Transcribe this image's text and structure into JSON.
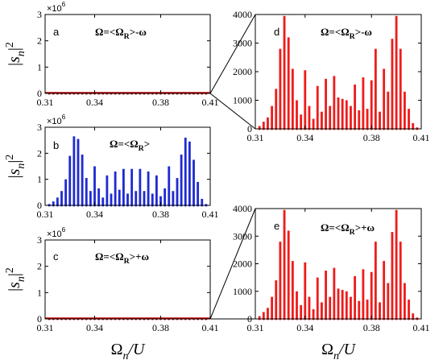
{
  "figure": {
    "ylabel": "|s_n|^2",
    "xlabel": "Ω_n/U"
  },
  "chart_data": [
    {
      "panel": "a",
      "type": "bar",
      "color": "#c00000",
      "flat": true,
      "label": "Ω=<Ω_R>-ω",
      "ylim": [
        0,
        3
      ],
      "yticks": [
        0,
        1,
        2,
        3
      ],
      "exponent": "×10^6",
      "xlim": [
        0.31,
        0.41
      ],
      "xticks": [
        "0.31",
        "0.34",
        "0.38",
        "0.41"
      ],
      "x": [
        0.3125,
        0.315,
        0.3175,
        0.32,
        0.3225,
        0.325,
        0.3275,
        0.33,
        0.3325,
        0.335,
        0.3375,
        0.34,
        0.3425,
        0.345,
        0.3475,
        0.35,
        0.3525,
        0.355,
        0.3575,
        0.36,
        0.3625,
        0.365,
        0.3675,
        0.37,
        0.3725,
        0.375,
        0.3775,
        0.38,
        0.3825,
        0.385,
        0.3875,
        0.39,
        0.3925,
        0.395,
        0.3975,
        0.4,
        0.4025,
        0.405,
        0.4075
      ],
      "values": [
        0,
        0,
        0,
        0,
        0,
        0,
        0,
        0,
        0,
        0,
        0,
        0,
        0,
        0,
        0,
        0,
        0,
        0,
        0,
        0,
        0,
        0,
        0,
        0,
        0,
        0,
        0,
        0,
        0,
        0,
        0,
        0,
        0,
        0,
        0,
        0,
        0,
        0,
        0
      ]
    },
    {
      "panel": "b",
      "type": "bar",
      "color": "#1f2bd0",
      "label": "Ω=<Ω_R>",
      "ylim": [
        0,
        3
      ],
      "yticks": [
        0,
        1,
        2,
        3
      ],
      "exponent": "×10^6",
      "xlim": [
        0.31,
        0.41
      ],
      "xticks": [
        "0.31",
        "0.34",
        "0.38",
        "0.41"
      ],
      "x": [
        0.3125,
        0.315,
        0.3175,
        0.32,
        0.3225,
        0.325,
        0.3275,
        0.33,
        0.3325,
        0.335,
        0.3375,
        0.34,
        0.3425,
        0.345,
        0.3475,
        0.35,
        0.3525,
        0.355,
        0.3575,
        0.36,
        0.3625,
        0.365,
        0.3675,
        0.37,
        0.3725,
        0.375,
        0.3775,
        0.38,
        0.3825,
        0.385,
        0.3875,
        0.39,
        0.3925,
        0.395,
        0.3975,
        0.4,
        0.4025,
        0.405,
        0.4075
      ],
      "values": [
        0.05,
        0.15,
        0.3,
        0.55,
        1.0,
        1.9,
        2.65,
        2.55,
        1.95,
        1.05,
        0.55,
        1.5,
        0.65,
        0.3,
        1.15,
        0.45,
        1.3,
        0.6,
        1.4,
        0.45,
        1.4,
        0.55,
        1.4,
        0.55,
        1.3,
        0.45,
        1.15,
        0.35,
        0.65,
        1.5,
        0.55,
        1.05,
        1.95,
        2.6,
        2.45,
        1.75,
        0.9,
        0.25,
        0.05
      ]
    },
    {
      "panel": "c",
      "type": "bar",
      "color": "#c00000",
      "flat": true,
      "label": "Ω=<Ω_R>+ω",
      "ylim": [
        0,
        3
      ],
      "yticks": [
        0,
        1,
        2,
        3
      ],
      "exponent": "×10^6",
      "xlim": [
        0.31,
        0.41
      ],
      "xticks": [
        "0.31",
        "0.34",
        "0.38",
        "0.41"
      ],
      "x": [
        0.3125,
        0.315,
        0.3175,
        0.32,
        0.3225,
        0.325,
        0.3275,
        0.33,
        0.3325,
        0.335,
        0.3375,
        0.34,
        0.3425,
        0.345,
        0.3475,
        0.35,
        0.3525,
        0.355,
        0.3575,
        0.36,
        0.3625,
        0.365,
        0.3675,
        0.37,
        0.3725,
        0.375,
        0.3775,
        0.38,
        0.3825,
        0.385,
        0.3875,
        0.39,
        0.3925,
        0.395,
        0.3975,
        0.4,
        0.4025,
        0.405,
        0.4075
      ],
      "values": [
        0,
        0,
        0,
        0,
        0,
        0,
        0,
        0,
        0,
        0,
        0,
        0,
        0,
        0,
        0,
        0,
        0,
        0,
        0,
        0,
        0,
        0,
        0,
        0,
        0,
        0,
        0,
        0,
        0,
        0,
        0,
        0,
        0,
        0,
        0,
        0,
        0,
        0,
        0
      ]
    },
    {
      "panel": "d",
      "type": "bar",
      "color": "#ee1c1c",
      "label": "Ω=<Ω_R>-ω",
      "ylim": [
        0,
        4000
      ],
      "yticks": [
        0,
        1000,
        2000,
        3000,
        4000
      ],
      "xlim": [
        0.31,
        0.41
      ],
      "xticks": [
        "0.31",
        "0.34",
        "0.38",
        "0.41"
      ],
      "x": [
        0.3125,
        0.315,
        0.3175,
        0.32,
        0.3225,
        0.325,
        0.3275,
        0.33,
        0.3325,
        0.335,
        0.3375,
        0.34,
        0.3425,
        0.345,
        0.3475,
        0.35,
        0.3525,
        0.355,
        0.3575,
        0.36,
        0.3625,
        0.365,
        0.3675,
        0.37,
        0.3725,
        0.375,
        0.3775,
        0.38,
        0.3825,
        0.385,
        0.3875,
        0.39,
        0.3925,
        0.395,
        0.3975,
        0.4,
        0.4025,
        0.405,
        0.4075
      ],
      "values": [
        100,
        250,
        400,
        800,
        1400,
        2800,
        3950,
        3200,
        2100,
        1000,
        500,
        2050,
        800,
        350,
        1500,
        600,
        1750,
        800,
        1850,
        1100,
        1050,
        1000,
        800,
        1550,
        650,
        1800,
        700,
        1700,
        2800,
        600,
        2100,
        1300,
        3150,
        3950,
        2800,
        1300,
        700,
        200,
        50
      ]
    },
    {
      "panel": "e",
      "type": "bar",
      "color": "#ee1c1c",
      "label": "Ω=<Ω_R>+ω",
      "ylim": [
        0,
        4000
      ],
      "yticks": [
        0,
        1000,
        2000,
        3000,
        4000
      ],
      "xlim": [
        0.31,
        0.41
      ],
      "xticks": [
        "0.31",
        "0.34",
        "0.38",
        "0.41"
      ],
      "x": [
        0.3125,
        0.315,
        0.3175,
        0.32,
        0.3225,
        0.325,
        0.3275,
        0.33,
        0.3325,
        0.335,
        0.3375,
        0.34,
        0.3425,
        0.345,
        0.3475,
        0.35,
        0.3525,
        0.355,
        0.3575,
        0.36,
        0.3625,
        0.365,
        0.3675,
        0.37,
        0.3725,
        0.375,
        0.3775,
        0.38,
        0.3825,
        0.385,
        0.3875,
        0.39,
        0.3925,
        0.395,
        0.3975,
        0.4,
        0.4025,
        0.405,
        0.4075
      ],
      "values": [
        100,
        250,
        400,
        800,
        1400,
        2800,
        3950,
        3200,
        2100,
        1000,
        500,
        2050,
        800,
        350,
        1500,
        600,
        1750,
        800,
        1850,
        1100,
        1050,
        1000,
        800,
        1550,
        650,
        1800,
        700,
        1700,
        2800,
        600,
        2100,
        1300,
        3150,
        3950,
        2800,
        1300,
        700,
        200,
        50
      ]
    }
  ]
}
